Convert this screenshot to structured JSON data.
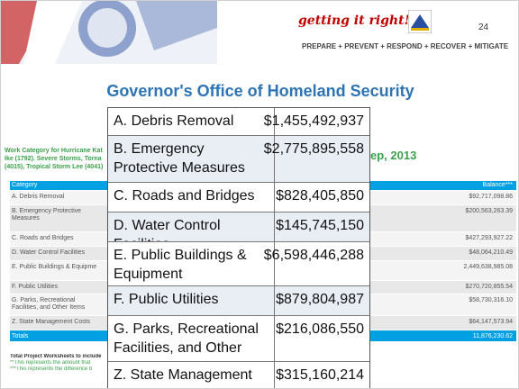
{
  "header": {
    "brand": "getting it right!",
    "page_number": "24",
    "tagline": "PREPARE + PREVENT + RESPOND + RECOVER + MITIGATE"
  },
  "title": "Governor's Office of Homeland Security",
  "left_text": [
    "Work Category for Hurricane Kat",
    "Ike (1792). Severe Storms, Torna",
    "(4015), Tropical Storm Lee (4041)"
  ],
  "right_text": "ep, 2013",
  "background_table": {
    "headers": [
      "Category",
      "Balance***"
    ],
    "rows": [
      [
        "A. Debris Removal",
        "$92,717,098.86"
      ],
      [
        "B. Emergency Protective Measures",
        "$200,563,263.39"
      ],
      [
        "C. Roads and Bridges",
        "$427,293,927.22"
      ],
      [
        "D. Water Control Facilities",
        "$48,064,210.49"
      ],
      [
        "E. Public Buildings & Equipme",
        "2,449,638,985.08"
      ],
      [
        "F. Public Utilities",
        "$270,720,855.54"
      ],
      [
        "G. Parks, Recreational Facilities, and Other Items",
        "$58,730,316.10"
      ],
      [
        "Z. State Management Costs",
        "$64,147,573.94"
      ],
      [
        "Totals",
        "11,876,230.62"
      ]
    ],
    "footnotes": [
      "Total Project Worksheets to include",
      "**This represents the amount that",
      "***This represents the difference b"
    ]
  },
  "overlay_table": {
    "rows": [
      [
        "A. Debris Removal",
        "$1,455,492,937"
      ],
      [
        "B. Emergency Protective Measures",
        "$2,775,895,558"
      ],
      [
        "C. Roads and Bridges",
        "$828,405,850"
      ],
      [
        "D. Water Control Facilities",
        "$145,745,150"
      ],
      [
        "E. Public Buildings & Equipment",
        "$6,598,446,288"
      ],
      [
        "F. Public Utilities",
        "$879,804,987"
      ],
      [
        "G. Parks, Recreational Facilities, and Other Items",
        "$216,086,550"
      ],
      [
        "Z. State Management Costs",
        "$315,160,214"
      ]
    ]
  }
}
